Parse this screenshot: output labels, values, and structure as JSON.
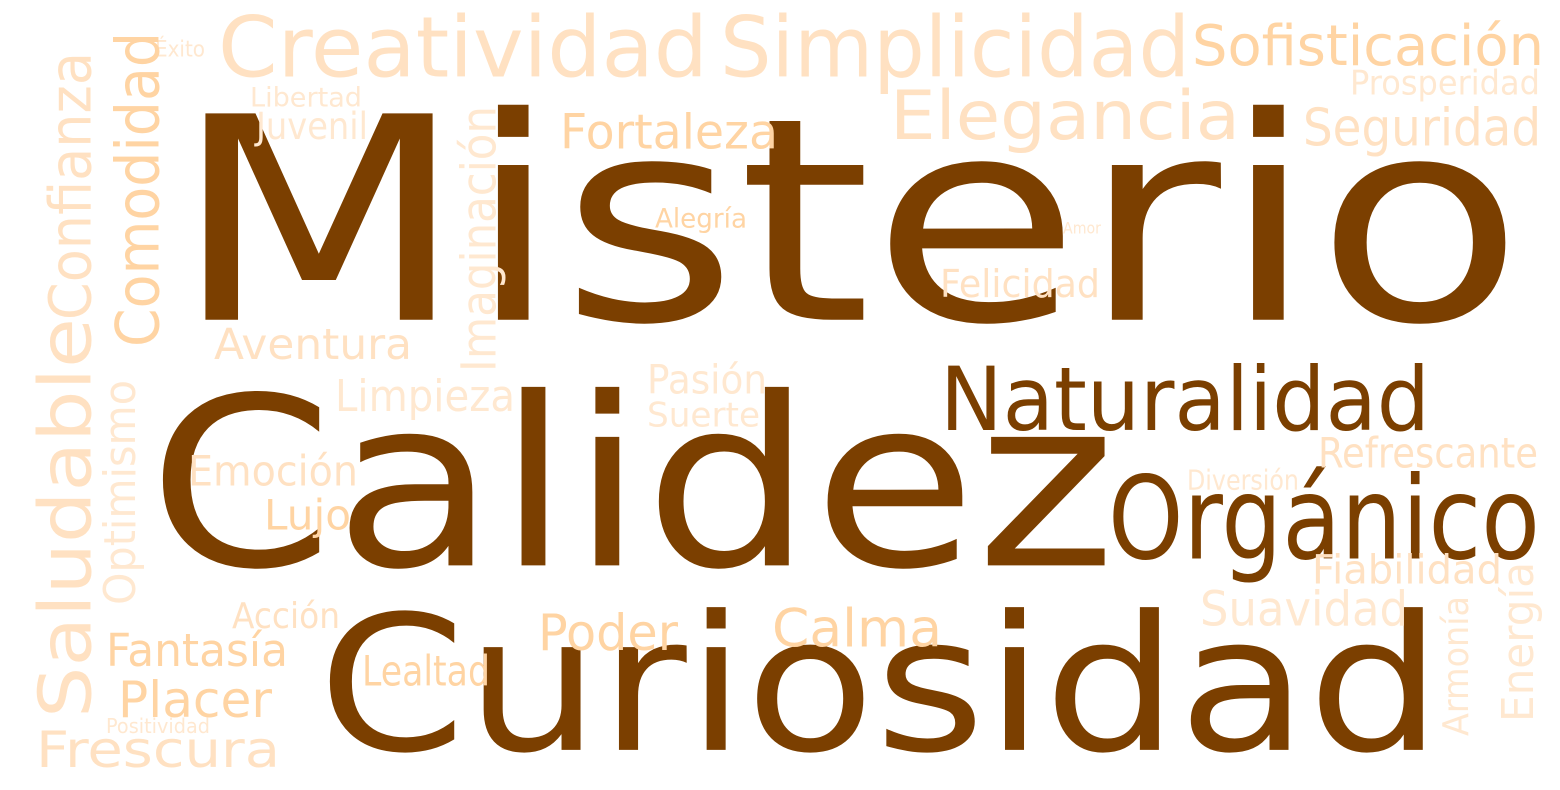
{
  "title": "Word cloud",
  "palette": {
    "dark": "#7b3f00",
    "orange": "#ffd4a3",
    "peach": "#ffe1c2",
    "pale": "#ffe8d0",
    "background": "#ffffff"
  },
  "words": [
    {
      "text": "Misterio",
      "color": "dark"
    },
    {
      "text": "Calidez",
      "color": "dark"
    },
    {
      "text": "Curiosidad",
      "color": "dark"
    },
    {
      "text": "Naturalidad",
      "color": "dark"
    },
    {
      "text": "Orgánico",
      "color": "dark"
    },
    {
      "text": "Creatividad",
      "color": "peach"
    },
    {
      "text": "Simplicidad",
      "color": "peach"
    },
    {
      "text": "Sofisticación",
      "color": "orange"
    },
    {
      "text": "Elegancia",
      "color": "peach"
    },
    {
      "text": "Prosperidad",
      "color": "pale"
    },
    {
      "text": "Seguridad",
      "color": "peach"
    },
    {
      "text": "Fortaleza",
      "color": "orange"
    },
    {
      "text": "Libertad",
      "color": "pale"
    },
    {
      "text": "Juvenil",
      "color": "pale"
    },
    {
      "text": "Éxito",
      "color": "pale"
    },
    {
      "text": "Comodidad",
      "color": "orange"
    },
    {
      "text": "Confianza",
      "color": "peach"
    },
    {
      "text": "Imaginación",
      "color": "pale"
    },
    {
      "text": "Alegría",
      "color": "orange"
    },
    {
      "text": "Amor",
      "color": "pale"
    },
    {
      "text": "Felicidad",
      "color": "peach"
    },
    {
      "text": "Aventura",
      "color": "peach"
    },
    {
      "text": "Saludable",
      "color": "peach"
    },
    {
      "text": "Limpieza",
      "color": "pale"
    },
    {
      "text": "Pasión",
      "color": "pale"
    },
    {
      "text": "Suerte",
      "color": "pale"
    },
    {
      "text": "Refrescante",
      "color": "peach"
    },
    {
      "text": "Emoción",
      "color": "peach"
    },
    {
      "text": "Diversión",
      "color": "pale"
    },
    {
      "text": "Optimismo",
      "color": "pale"
    },
    {
      "text": "Lujo",
      "color": "orange"
    },
    {
      "text": "Fiabilidad",
      "color": "peach"
    },
    {
      "text": "Energía",
      "color": "pale"
    },
    {
      "text": "Acción",
      "color": "peach"
    },
    {
      "text": "Poder",
      "color": "orange"
    },
    {
      "text": "Calma",
      "color": "orange"
    },
    {
      "text": "Suavidad",
      "color": "pale"
    },
    {
      "text": "Fantasía",
      "color": "orange"
    },
    {
      "text": "Armonía",
      "color": "pale"
    },
    {
      "text": "Lealtad",
      "color": "orange"
    },
    {
      "text": "Placer",
      "color": "orange"
    },
    {
      "text": "Positividad",
      "color": "pale"
    },
    {
      "text": "Frescura",
      "color": "peach"
    }
  ]
}
